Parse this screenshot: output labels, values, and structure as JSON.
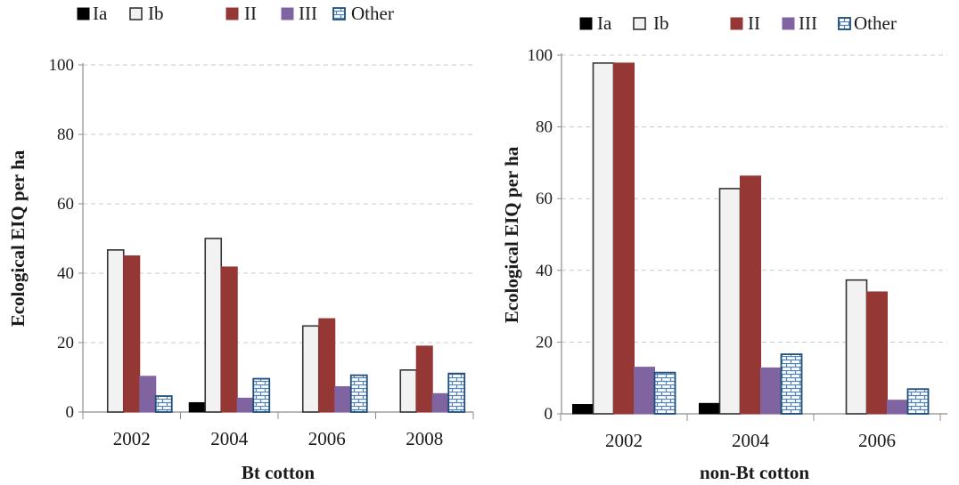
{
  "colors": {
    "Ia": "#000000",
    "Ib": "#f2f2f2",
    "Ib_stroke": "#333333",
    "II": "#953735",
    "III": "#8064a2",
    "Other_fill": "#ffffff",
    "Other_stroke": "#1f4e79",
    "Other_brick": "#4f81bd",
    "grid": "#c8c8c8",
    "axis": "#8c8c8c"
  },
  "chart_data": [
    {
      "type": "bar",
      "xlabel": "Bt cotton",
      "ylabel": "Ecological EIQ per ha",
      "ylim": [
        0,
        100
      ],
      "yticks": [
        0,
        20,
        40,
        60,
        80,
        100
      ],
      "grid": true,
      "legend_position": "top",
      "categories": [
        "2002",
        "2004",
        "2006",
        "2008"
      ],
      "series": [
        {
          "name": "Ia",
          "values": [
            0,
            2.7,
            0,
            0
          ]
        },
        {
          "name": "Ib",
          "values": [
            46.7,
            50,
            24.8,
            12.1
          ]
        },
        {
          "name": "II",
          "values": [
            45,
            41.8,
            26.9,
            19
          ]
        },
        {
          "name": "III",
          "values": [
            10.3,
            4,
            7.3,
            5.3
          ]
        },
        {
          "name": "Other",
          "values": [
            4.6,
            9.6,
            10.6,
            11.1
          ]
        }
      ]
    },
    {
      "type": "bar",
      "xlabel": "non-Bt cotton",
      "ylabel": "Ecological EIQ per ha",
      "ylim": [
        0,
        100
      ],
      "yticks": [
        0,
        20,
        40,
        60,
        80,
        100
      ],
      "grid": true,
      "legend_position": "top",
      "categories": [
        "2002",
        "2004",
        "2006"
      ],
      "series": [
        {
          "name": "Ia",
          "values": [
            2.6,
            2.9,
            0
          ]
        },
        {
          "name": "Ib",
          "values": [
            97.8,
            62.8,
            37.3
          ]
        },
        {
          "name": "II",
          "values": [
            97.8,
            66.3,
            34
          ]
        },
        {
          "name": "III",
          "values": [
            13,
            12.8,
            3.8
          ]
        },
        {
          "name": "Other",
          "values": [
            11.5,
            16.6,
            6.9
          ]
        }
      ]
    }
  ]
}
